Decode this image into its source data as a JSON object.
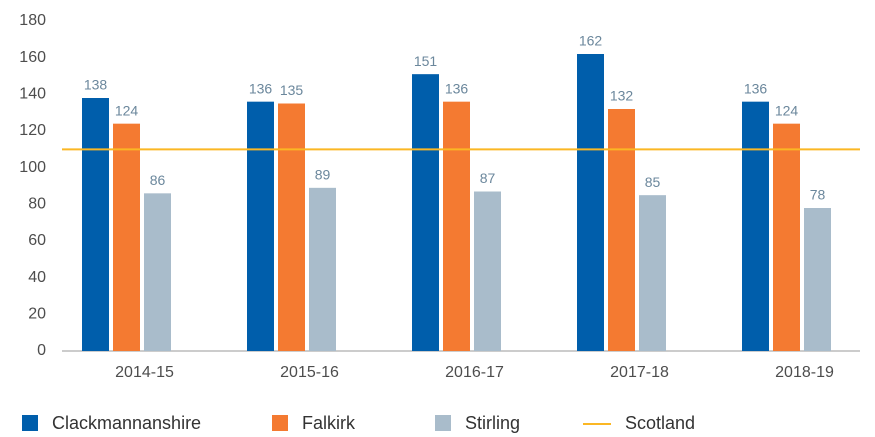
{
  "chart_data": {
    "type": "bar",
    "categories": [
      "2014-15",
      "2015-16",
      "2016-17",
      "2017-18",
      "2018-19"
    ],
    "series": [
      {
        "name": "Clackmannanshire",
        "color": "#005eab",
        "values": [
          138,
          136,
          151,
          162,
          136
        ]
      },
      {
        "name": "Falkirk",
        "color": "#f47a31",
        "values": [
          124,
          135,
          136,
          132,
          124
        ]
      },
      {
        "name": "Stirling",
        "color": "#a9bccb",
        "values": [
          86,
          89,
          87,
          85,
          78
        ]
      }
    ],
    "reference_line": {
      "name": "Scotland",
      "color": "#fbb724",
      "value": 110
    },
    "ylim": [
      0,
      180
    ],
    "yticks": [
      0,
      20,
      40,
      60,
      80,
      100,
      120,
      140,
      160,
      180
    ],
    "grid": false,
    "legend": "bottom"
  }
}
